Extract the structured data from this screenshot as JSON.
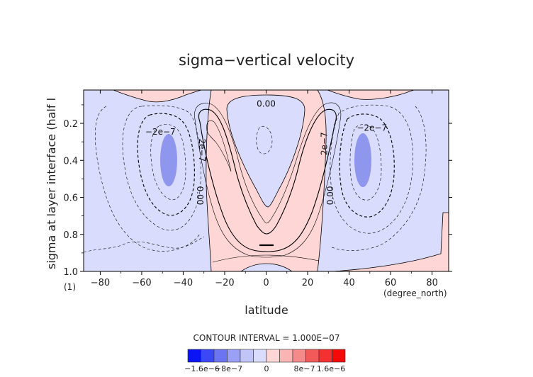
{
  "chart_data": {
    "type": "contour",
    "title": "sigma−vertical velocity",
    "xlabel": "latitude",
    "ylabel": "sigma at layer interface (half l",
    "x_unit": "(degree_north)",
    "y_unit": "(1)",
    "xlim": [
      -88,
      88
    ],
    "ylim": [
      1.0,
      0.02
    ],
    "x_ticks": [
      -80,
      -60,
      -40,
      -20,
      0,
      20,
      40,
      60,
      80
    ],
    "y_ticks": [
      0.2,
      0.4,
      0.6,
      0.8,
      1.0
    ],
    "x_tick_labels": [
      "−80",
      "−60",
      "−40",
      "−20",
      "0",
      "20",
      "40",
      "60",
      "80"
    ],
    "y_tick_labels": [
      "0.2",
      "0.4",
      "0.6",
      "0.8",
      "1.0"
    ],
    "contour_interval_text": "CONTOUR INTERVAL = 1.000E−07",
    "contour_labels": [
      {
        "text": "0.00",
        "lat": 0,
        "sigma": 0.095,
        "rotate": 0
      },
      {
        "text": "−2e−7",
        "lat": -51,
        "sigma": 0.245,
        "rotate": 0
      },
      {
        "text": "−2e−7",
        "lat": 51,
        "sigma": 0.225,
        "rotate": 0
      },
      {
        "text": "2e−7",
        "lat": -31,
        "sigma": 0.345,
        "rotate": 90
      },
      {
        "text": "2e−7",
        "lat": 28,
        "sigma": 0.31,
        "rotate": -90
      },
      {
        "text": "0.00",
        "lat": -32,
        "sigma": 0.59,
        "rotate": 90
      },
      {
        "text": "0.00",
        "lat": 31,
        "sigma": 0.59,
        "rotate": -90
      }
    ],
    "colorbar": {
      "colors": [
        "#0b14f5",
        "#3c48f6",
        "#6d74f2",
        "#9aa0f5",
        "#c0c4f8",
        "#d9dcfc",
        "#ffd6d6",
        "#fbb4b4",
        "#f58a8a",
        "#f25a5a",
        "#f53030",
        "#f50a0a"
      ],
      "tick_labels": [
        "−1.6e−6",
        "−8e−7",
        "0",
        "8e−7",
        "1.6e−6"
      ],
      "extra_label": "−8e−7"
    },
    "fill_colors": {
      "positive_weak": "#ffd6d6",
      "negative_weak": "#d9dcfc",
      "negative_mid": "#8f96ee"
    }
  }
}
